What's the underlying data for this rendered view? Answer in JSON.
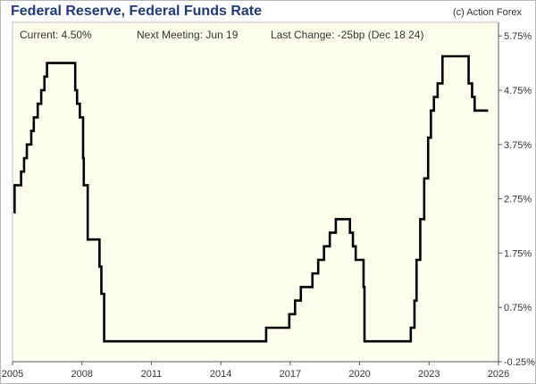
{
  "header": {
    "title": "Federal Reserve, Federal Funds Rate",
    "copyright": "(c) Action Forex"
  },
  "info": {
    "current": "Current:  4.50%",
    "next_meeting": "Next Meeting:  Jun 19",
    "last_change": "Last Change:  -25bp (Dec 18 24)"
  },
  "colors": {
    "plot_bg": "#fefeed",
    "line": "#000000",
    "axis": "#555555",
    "title": "#1f3a7a"
  },
  "chart_data": {
    "type": "line",
    "title": "Federal Reserve, Federal Funds Rate",
    "xlabel": "",
    "ylabel": "",
    "xlim": [
      2005.0,
      2026.0
    ],
    "ylim": [
      -0.25,
      6.0
    ],
    "grid": false,
    "legend": "none",
    "x_ticks": [
      2005,
      2008,
      2011,
      2014,
      2017,
      2020,
      2023,
      2026
    ],
    "x_tick_labels": [
      "2005",
      "2008",
      "2011",
      "2014",
      "2017",
      "2020",
      "2023",
      "2026"
    ],
    "y_ticks": [
      -0.25,
      0.75,
      1.75,
      2.75,
      3.75,
      4.75,
      5.75
    ],
    "y_tick_labels": [
      "-0.25%",
      "0.75%",
      "1.75%",
      "2.75%",
      "3.75%",
      "4.75%",
      "5.75%"
    ],
    "series": [
      {
        "step": true,
        "x": [
          2005.05,
          2005.09,
          2005.25,
          2005.37,
          2005.5,
          2005.62,
          2005.81,
          2005.92,
          2006.09,
          2006.24,
          2006.38,
          2006.49,
          2007.71,
          2007.79,
          2007.91,
          2008.05,
          2008.08,
          2008.25,
          2008.76,
          2008.84,
          2008.96,
          2015.96,
          2016.96,
          2017.21,
          2017.46,
          2017.96,
          2018.21,
          2018.46,
          2018.71,
          2018.97,
          2019.58,
          2019.71,
          2019.83,
          2020.17,
          2020.21,
          2022.21,
          2022.37,
          2022.46,
          2022.62,
          2022.79,
          2022.96,
          2023.08,
          2023.21,
          2023.37,
          2023.58,
          2024.71,
          2024.86,
          2024.97,
          2025.55
        ],
        "y": [
          2.5,
          3.0,
          3.0,
          3.25,
          3.5,
          3.75,
          4.0,
          4.25,
          4.5,
          4.75,
          5.0,
          5.25,
          4.75,
          4.5,
          4.25,
          3.5,
          3.0,
          2.0,
          1.5,
          1.0,
          0.125,
          0.375,
          0.625,
          0.875,
          1.125,
          1.375,
          1.625,
          1.875,
          2.125,
          2.375,
          2.125,
          1.875,
          1.625,
          1.125,
          0.125,
          0.375,
          0.875,
          1.625,
          2.375,
          3.125,
          3.875,
          4.375,
          4.625,
          4.875,
          5.375,
          4.875,
          4.625,
          4.375,
          4.375
        ]
      }
    ]
  }
}
